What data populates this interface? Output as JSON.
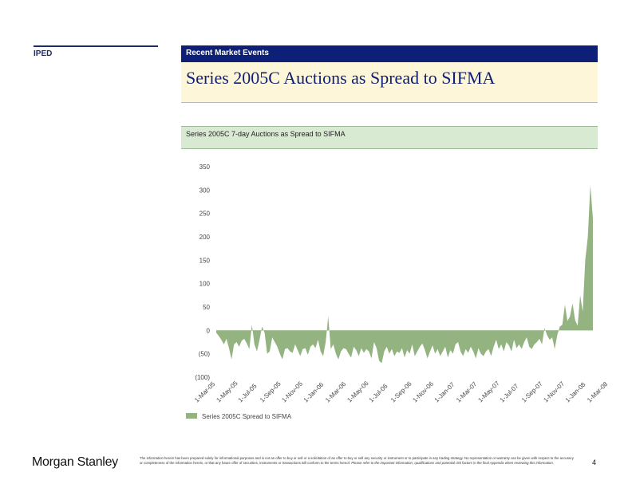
{
  "header": {
    "division": "IPED",
    "section": "Recent Market Events",
    "title": "Series 2005C Auctions as Spread to SIFMA"
  },
  "chart_header": {
    "subtitle": "Series 2005C 7-day Auctions as Spread to SIFMA"
  },
  "colors": {
    "navy": "#0e1f78",
    "area_fill": "#93b380",
    "title_bg": "#fef6d8",
    "subtitle_bg": "#d9ead3"
  },
  "chart_data": {
    "type": "area",
    "title": "",
    "xlabel": "",
    "ylabel": "",
    "ylim": [
      -100,
      350
    ],
    "y_ticks": [
      350,
      300,
      250,
      200,
      150,
      100,
      50,
      0,
      -50,
      -100
    ],
    "y_tick_labels": [
      "350",
      "300",
      "250",
      "200",
      "150",
      "100",
      "50",
      "0",
      "(50)",
      "(100)"
    ],
    "x_tick_labels": [
      "1-Mar-05",
      "1-May-05",
      "1-Jul-05",
      "1-Sep-05",
      "1-Nov-05",
      "1-Jan-06",
      "1-Mar-06",
      "1-May-06",
      "1-Jul-06",
      "1-Sep-06",
      "1-Nov-06",
      "1-Jan-07",
      "1-Mar-07",
      "1-May-07",
      "1-Jul-07",
      "1-Sep-07",
      "1-Nov-07",
      "1-Jan-08",
      "1-Mar-08"
    ],
    "grid": false,
    "legend_position": "bottom-left",
    "series": [
      {
        "name": "Series 2005C Spread to SIFMA",
        "values": [
          -5,
          -12,
          -20,
          -30,
          -18,
          -38,
          -62,
          -30,
          -25,
          -35,
          -22,
          -18,
          -28,
          -40,
          12,
          -30,
          -45,
          -20,
          8,
          -5,
          -50,
          -45,
          -15,
          -25,
          -35,
          -50,
          -62,
          -40,
          -38,
          -45,
          -48,
          -30,
          -42,
          -55,
          -40,
          -38,
          -52,
          -35,
          -30,
          -38,
          -20,
          -45,
          -55,
          -25,
          30,
          -40,
          -30,
          -50,
          -62,
          -45,
          -38,
          -40,
          -50,
          -58,
          -35,
          -42,
          -55,
          -38,
          -48,
          -40,
          -45,
          -60,
          -25,
          -38,
          -65,
          -70,
          -45,
          -35,
          -50,
          -40,
          -55,
          -45,
          -48,
          -38,
          -58,
          -42,
          -50,
          -30,
          -55,
          -45,
          -35,
          -28,
          -42,
          -60,
          -45,
          -32,
          -50,
          -40,
          -55,
          -45,
          -35,
          -58,
          -42,
          -50,
          -30,
          -25,
          -45,
          -55,
          -40,
          -48,
          -35,
          -45,
          -60,
          -38,
          -50,
          -55,
          -45,
          -40,
          -55,
          -35,
          -20,
          -40,
          -30,
          -45,
          -25,
          -32,
          -45,
          -20,
          -38,
          -30,
          -40,
          -25,
          -15,
          -35,
          -40,
          -30,
          -25,
          -18,
          -30,
          5,
          -10,
          -20,
          -15,
          -40,
          -10,
          8,
          12,
          55,
          20,
          30,
          58,
          22,
          10,
          75,
          40,
          150,
          200,
          310,
          240
        ]
      }
    ]
  },
  "footer": {
    "logo": "Morgan Stanley",
    "disclaimer": "The information herein has been prepared solely for informational purposes and is not an offer to buy or sell or a solicitation of an offer to buy or sell any security or instrument or to participate in any trading strategy. No representation or warranty can be given with respect to the accuracy or completeness of the information herein, or that any future offer of securities, instruments or transactions will conform to the terms hereof.",
    "disclaimer_italic": "Please refer to the important information, qualifications and potential risk factors in the final Appendix when reviewing this information.",
    "page_number": "4"
  }
}
